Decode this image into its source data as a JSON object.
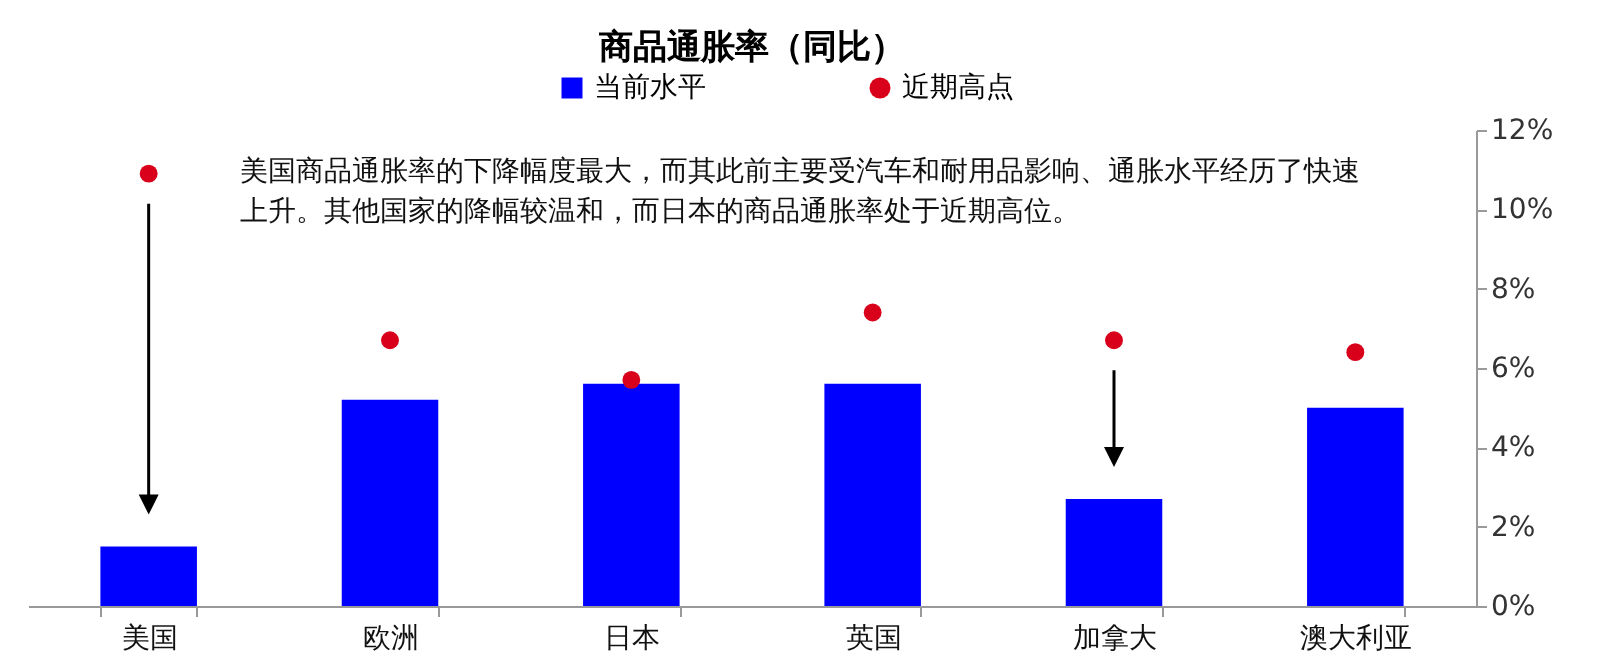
{
  "chart_data": {
    "type": "bar",
    "title": "商品通胀率（同比）",
    "categories": [
      "美国",
      "欧洲",
      "日本",
      "英国",
      "加拿大",
      "澳大利亚"
    ],
    "series": [
      {
        "name": "当前水平",
        "color": "#0000ff",
        "values": [
          1.5,
          5.2,
          5.6,
          5.6,
          2.7,
          5.0
        ]
      },
      {
        "name": "近期高点",
        "type": "scatter",
        "color": "#d9001b",
        "values": [
          10.9,
          6.7,
          5.7,
          7.4,
          6.7,
          6.4
        ]
      }
    ],
    "ylim": [
      0,
      12
    ],
    "yticks": [
      {
        "value": 0,
        "label": "0%"
      },
      {
        "value": 2,
        "label": "2%"
      },
      {
        "value": 4,
        "label": "4%"
      },
      {
        "value": 6,
        "label": "6%"
      },
      {
        "value": 8,
        "label": "8%"
      },
      {
        "value": 10,
        "label": "10%"
      },
      {
        "value": 12,
        "label": "12%"
      }
    ],
    "legend": "top",
    "marker": "circle",
    "annotations": [
      "美国商品通胀率的下降幅度最大，而其此前主要受汽车和耐用品影响、通胀水平经历了快速上升。其他国家的降幅较温和，而日本的商品通胀率处于近期高位。"
    ]
  }
}
